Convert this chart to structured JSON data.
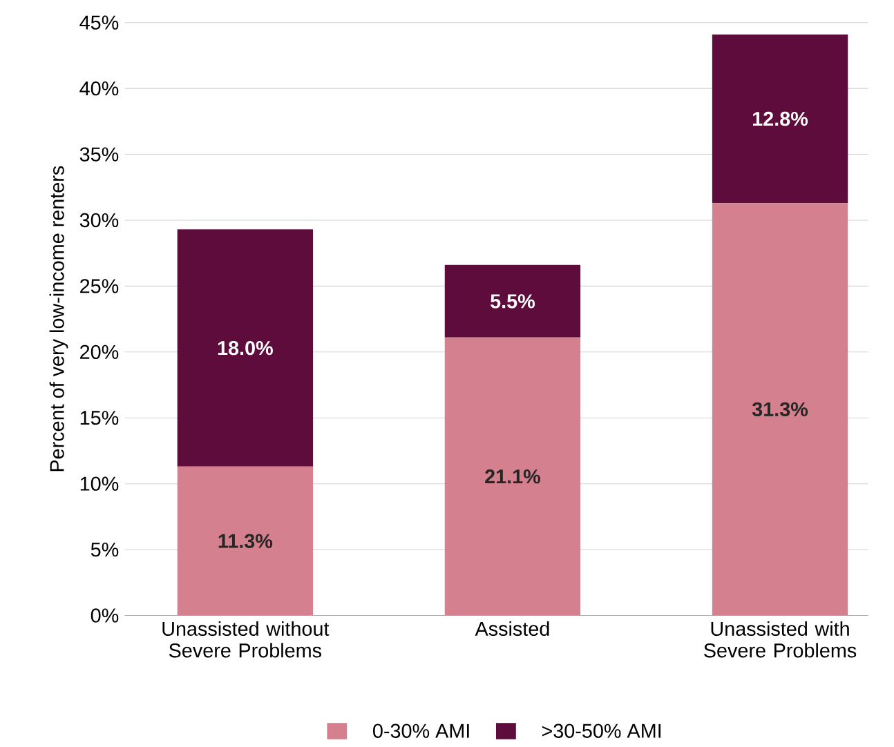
{
  "chart_data": {
    "type": "bar",
    "stacked": true,
    "ylabel": "Percent of very low-income renters",
    "categories": [
      "Unassisted without Severe Problems",
      "Assisted",
      "Unassisted with Severe Problems"
    ],
    "series": [
      {
        "name": "0-30% AMI",
        "color": "#d4808e",
        "values": [
          11.3,
          21.1,
          31.3
        ],
        "value_labels": [
          "11.3%",
          "21.1%",
          "31.3%"
        ]
      },
      {
        "name": ">30-50% AMI",
        "color": "#5e0c3b",
        "values": [
          18.0,
          5.5,
          12.8
        ],
        "value_labels": [
          "18.0%",
          "5.5%",
          "12.8%"
        ]
      }
    ],
    "ylim": [
      0,
      45
    ],
    "yticks": [
      {
        "value": 0,
        "label": "0%"
      },
      {
        "value": 5,
        "label": "5%"
      },
      {
        "value": 10,
        "label": "10%"
      },
      {
        "value": 15,
        "label": "15%"
      },
      {
        "value": 20,
        "label": "20%"
      },
      {
        "value": 25,
        "label": "25%"
      },
      {
        "value": 30,
        "label": "30%"
      },
      {
        "value": 35,
        "label": "35%"
      },
      {
        "value": 40,
        "label": "40%"
      },
      {
        "value": 45,
        "label": "45%"
      }
    ],
    "grid": "y",
    "legend": "bottom"
  }
}
